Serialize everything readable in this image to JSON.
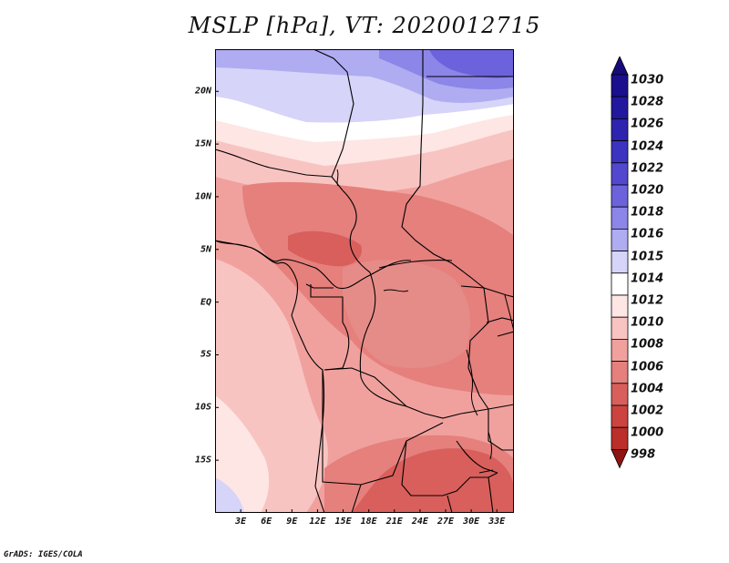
{
  "title": "MSLP [hPa], VT: 2020012715",
  "credit": "GrADS: IGES/COLA",
  "map": {
    "lon_range": [
      0,
      35
    ],
    "lat_range": [
      -20,
      24
    ],
    "lat_ticks": [
      {
        "value": 20,
        "label": "20N"
      },
      {
        "value": 15,
        "label": "15N"
      },
      {
        "value": 10,
        "label": "10N"
      },
      {
        "value": 5,
        "label": "5N"
      },
      {
        "value": 0,
        "label": "EQ"
      },
      {
        "value": -5,
        "label": "5S"
      },
      {
        "value": -10,
        "label": "10S"
      },
      {
        "value": -15,
        "label": "15S"
      }
    ],
    "lon_ticks": [
      {
        "value": 3,
        "label": "3E"
      },
      {
        "value": 6,
        "label": "6E"
      },
      {
        "value": 9,
        "label": "9E"
      },
      {
        "value": 12,
        "label": "12E"
      },
      {
        "value": 15,
        "label": "15E"
      },
      {
        "value": 18,
        "label": "18E"
      },
      {
        "value": 21,
        "label": "21E"
      },
      {
        "value": 24,
        "label": "24E"
      },
      {
        "value": 27,
        "label": "27E"
      },
      {
        "value": 30,
        "label": "30E"
      },
      {
        "value": 33,
        "label": "33E"
      }
    ]
  },
  "colorbar": {
    "levels": [
      {
        "label": "1030",
        "color": "#1a0f8c"
      },
      {
        "label": "1028",
        "color": "#22189e"
      },
      {
        "label": "1026",
        "color": "#2d23ae"
      },
      {
        "label": "1024",
        "color": "#3c33c0"
      },
      {
        "label": "1022",
        "color": "#5248cf"
      },
      {
        "label": "1020",
        "color": "#6c63dc"
      },
      {
        "label": "1018",
        "color": "#8c86e8"
      },
      {
        "label": "1016",
        "color": "#b0acf1"
      },
      {
        "label": "1015",
        "color": "#d6d4f8"
      },
      {
        "label": "1014",
        "color": "#ffffff"
      },
      {
        "label": "1012",
        "color": "#fde6e4"
      },
      {
        "label": "1010",
        "color": "#f8c4c1"
      },
      {
        "label": "1008",
        "color": "#f0a19e"
      },
      {
        "label": "1006",
        "color": "#e5807d"
      },
      {
        "label": "1004",
        "color": "#d95f5c"
      },
      {
        "label": "1002",
        "color": "#cc4440"
      },
      {
        "label": "1000",
        "color": "#bb2e2a"
      },
      {
        "label": "998",
        "color": "#a51b19"
      }
    ],
    "top_color": "#170b7a",
    "bottom_color": "#8f1512"
  }
}
